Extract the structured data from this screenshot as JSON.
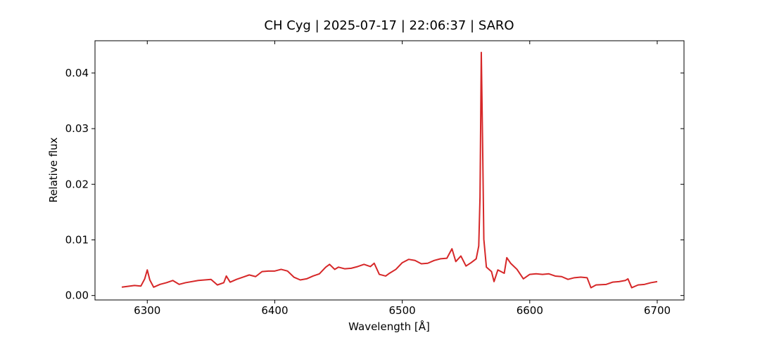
{
  "chart_data": {
    "type": "line",
    "title": "CH Cyg | 2025-07-17 | 22:06:37 | SARO",
    "xlabel": "Wavelength [Å]",
    "ylabel": "Relative flux",
    "x": [
      6280,
      6290,
      6295,
      6298,
      6300,
      6302,
      6305,
      6310,
      6315,
      6320,
      6325,
      6330,
      6340,
      6345,
      6350,
      6355,
      6360,
      6362,
      6365,
      6370,
      6375,
      6380,
      6385,
      6390,
      6395,
      6400,
      6405,
      6410,
      6415,
      6420,
      6425,
      6430,
      6435,
      6440,
      6443,
      6447,
      6450,
      6455,
      6460,
      6465,
      6470,
      6475,
      6478,
      6482,
      6487,
      6490,
      6495,
      6500,
      6505,
      6510,
      6515,
      6520,
      6525,
      6530,
      6535,
      6539,
      6542,
      6546,
      6550,
      6554,
      6558,
      6560,
      6561,
      6562,
      6563,
      6564,
      6566,
      6570,
      6572,
      6575,
      6580,
      6582,
      6585,
      6590,
      6595,
      6600,
      6605,
      6610,
      6615,
      6620,
      6625,
      6630,
      6635,
      6640,
      6645,
      6648,
      6652,
      6660,
      6665,
      6670,
      6675,
      6677,
      6680,
      6685,
      6690,
      6695,
      6700
    ],
    "series": [
      {
        "name": "CH Cyg",
        "color": "#d62728",
        "values": [
          0.0015,
          0.0018,
          0.0017,
          0.003,
          0.0046,
          0.0028,
          0.0015,
          0.002,
          0.0023,
          0.0027,
          0.002,
          0.0023,
          0.0027,
          0.0028,
          0.0029,
          0.0019,
          0.0023,
          0.0035,
          0.0024,
          0.0029,
          0.0033,
          0.0037,
          0.0034,
          0.0043,
          0.0044,
          0.0044,
          0.0047,
          0.0044,
          0.0033,
          0.0028,
          0.003,
          0.0035,
          0.0039,
          0.0051,
          0.0056,
          0.0047,
          0.0051,
          0.0048,
          0.0049,
          0.0052,
          0.0056,
          0.0052,
          0.0058,
          0.0038,
          0.0035,
          0.004,
          0.0047,
          0.0059,
          0.0065,
          0.0063,
          0.0057,
          0.0058,
          0.0063,
          0.0066,
          0.0067,
          0.0084,
          0.0061,
          0.0071,
          0.0053,
          0.0059,
          0.0066,
          0.0089,
          0.0177,
          0.0437,
          0.0278,
          0.0101,
          0.0051,
          0.0043,
          0.0025,
          0.0046,
          0.004,
          0.0068,
          0.0058,
          0.0047,
          0.003,
          0.0038,
          0.0039,
          0.0038,
          0.0039,
          0.0035,
          0.0034,
          0.0029,
          0.0032,
          0.0033,
          0.0032,
          0.0014,
          0.0019,
          0.002,
          0.0024,
          0.0025,
          0.0027,
          0.003,
          0.0014,
          0.0019,
          0.002,
          0.0023,
          0.0025
        ]
      }
    ],
    "xlim": [
      6259,
      6721
    ],
    "ylim": [
      -0.0008,
      0.0458
    ],
    "xticks": [
      6300,
      6400,
      6500,
      6600,
      6700
    ],
    "yticks": [
      {
        "value": 0,
        "label": "0.00"
      },
      {
        "value": 0.01,
        "label": "0.01"
      },
      {
        "value": 0.02,
        "label": "0.02"
      },
      {
        "value": 0.03,
        "label": "0.03"
      },
      {
        "value": 0.04,
        "label": "0.04"
      }
    ],
    "grid": false
  }
}
